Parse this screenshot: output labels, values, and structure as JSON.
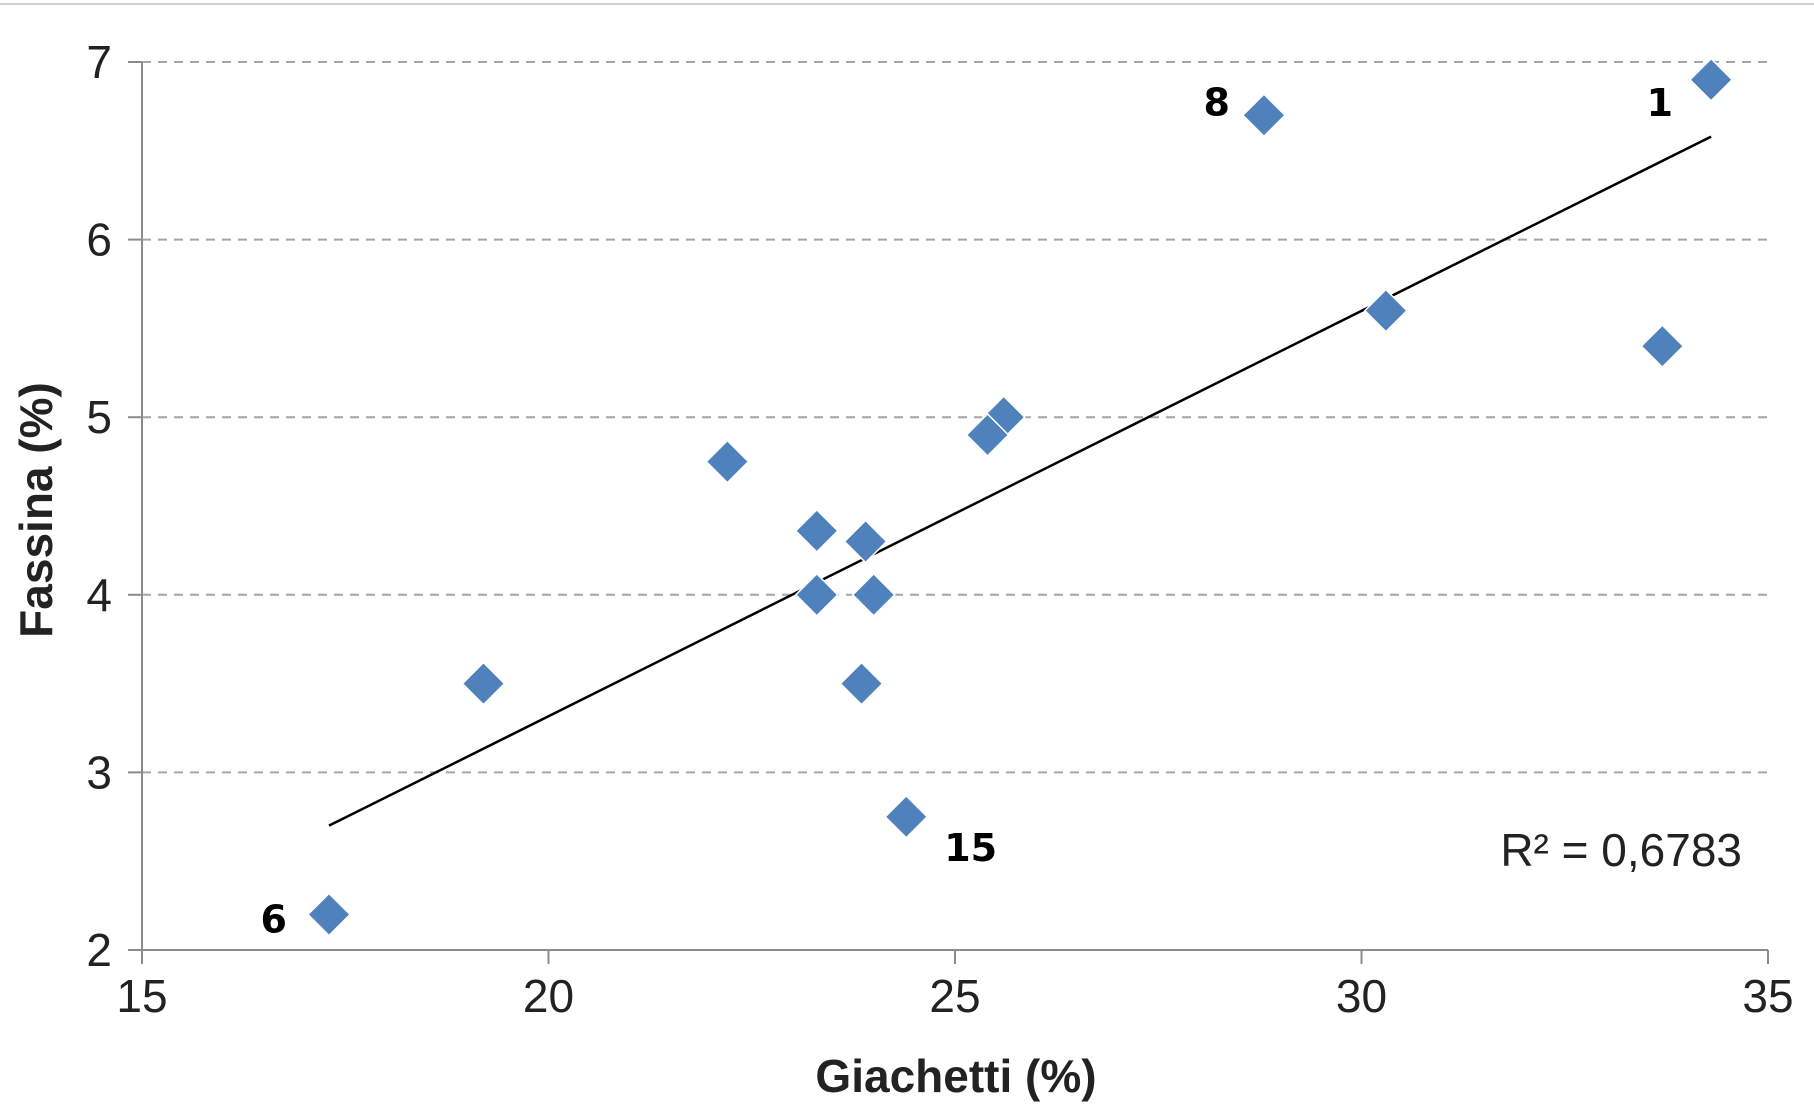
{
  "chart_data": {
    "type": "scatter",
    "xlabel": "Giachetti (%)",
    "ylabel": "Fassina (%)",
    "xlim": [
      15,
      35
    ],
    "ylim": [
      2,
      7
    ],
    "x_ticks": [
      "15",
      "20",
      "25",
      "30",
      "35"
    ],
    "y_ticks": [
      "2",
      "3",
      "4",
      "5",
      "6",
      "7"
    ],
    "grid": "horizontal dashed",
    "marker": "diamond",
    "colors": {
      "marker": "#4f81bd",
      "trendline": "#000000",
      "grid": "#a6a6a6",
      "axis": "#8c8c8c"
    },
    "points": [
      {
        "x": 34.3,
        "y": 6.9,
        "label": "1"
      },
      {
        "x": 28.8,
        "y": 6.7,
        "label": "8"
      },
      {
        "x": 30.3,
        "y": 5.6,
        "label": ""
      },
      {
        "x": 33.7,
        "y": 5.4,
        "label": ""
      },
      {
        "x": 25.6,
        "y": 5.0,
        "label": ""
      },
      {
        "x": 25.4,
        "y": 4.9,
        "label": ""
      },
      {
        "x": 22.2,
        "y": 4.75,
        "label": ""
      },
      {
        "x": 23.3,
        "y": 4.36,
        "label": ""
      },
      {
        "x": 23.9,
        "y": 4.3,
        "label": ""
      },
      {
        "x": 23.3,
        "y": 4.0,
        "label": ""
      },
      {
        "x": 24.0,
        "y": 4.0,
        "label": ""
      },
      {
        "x": 19.2,
        "y": 3.5,
        "label": ""
      },
      {
        "x": 23.85,
        "y": 3.5,
        "label": ""
      },
      {
        "x": 24.4,
        "y": 2.75,
        "label": "15"
      },
      {
        "x": 17.3,
        "y": 2.2,
        "label": "6"
      }
    ],
    "trendline": {
      "type": "linear",
      "x": [
        17.3,
        34.3
      ],
      "y": [
        2.7,
        6.58
      ]
    },
    "annotation": "R² = 0,6783"
  }
}
